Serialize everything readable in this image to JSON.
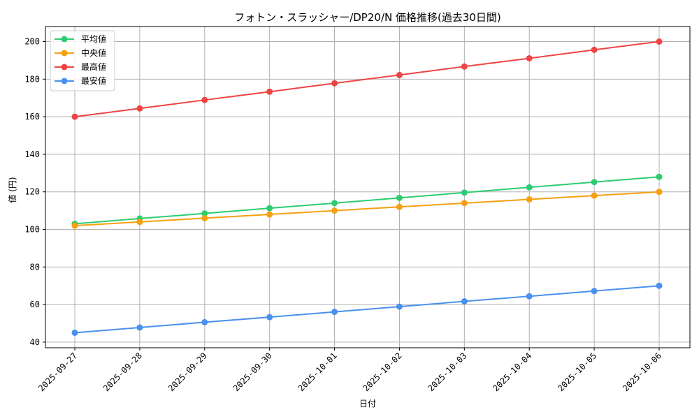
{
  "chart_data": {
    "type": "line",
    "title": "フォトン・スラッシャー/DP20/N 価格推移(過去30日間)",
    "xlabel": "日付",
    "ylabel": "値 (円)",
    "categories": [
      "2025-09-27",
      "2025-09-28",
      "2025-09-29",
      "2025-09-30",
      "2025-10-01",
      "2025-10-02",
      "2025-10-03",
      "2025-10-04",
      "2025-10-05",
      "2025-10-06"
    ],
    "ylim": [
      37,
      208
    ],
    "yticks": [
      40,
      60,
      80,
      100,
      120,
      140,
      160,
      180,
      200
    ],
    "grid": true,
    "legend_position": "top-left",
    "series": [
      {
        "name": "平均値",
        "color": "#2ecc71",
        "values": [
          103,
          105.8,
          108.5,
          111.3,
          114,
          116.8,
          119.6,
          122.4,
          125.2,
          128
        ]
      },
      {
        "name": "中央値",
        "color": "#f5a00f",
        "values": [
          102,
          104,
          106,
          108,
          110,
          112,
          114,
          116,
          118,
          120
        ]
      },
      {
        "name": "最高値",
        "color": "#ef4444",
        "values": [
          160,
          164.4,
          168.9,
          173.3,
          177.8,
          182.2,
          186.7,
          191.1,
          195.6,
          200
        ]
      },
      {
        "name": "最安値",
        "color": "#4a90f0",
        "values": [
          45,
          47.8,
          50.6,
          53.3,
          56.1,
          58.9,
          61.7,
          64.4,
          67.2,
          70
        ]
      }
    ]
  }
}
